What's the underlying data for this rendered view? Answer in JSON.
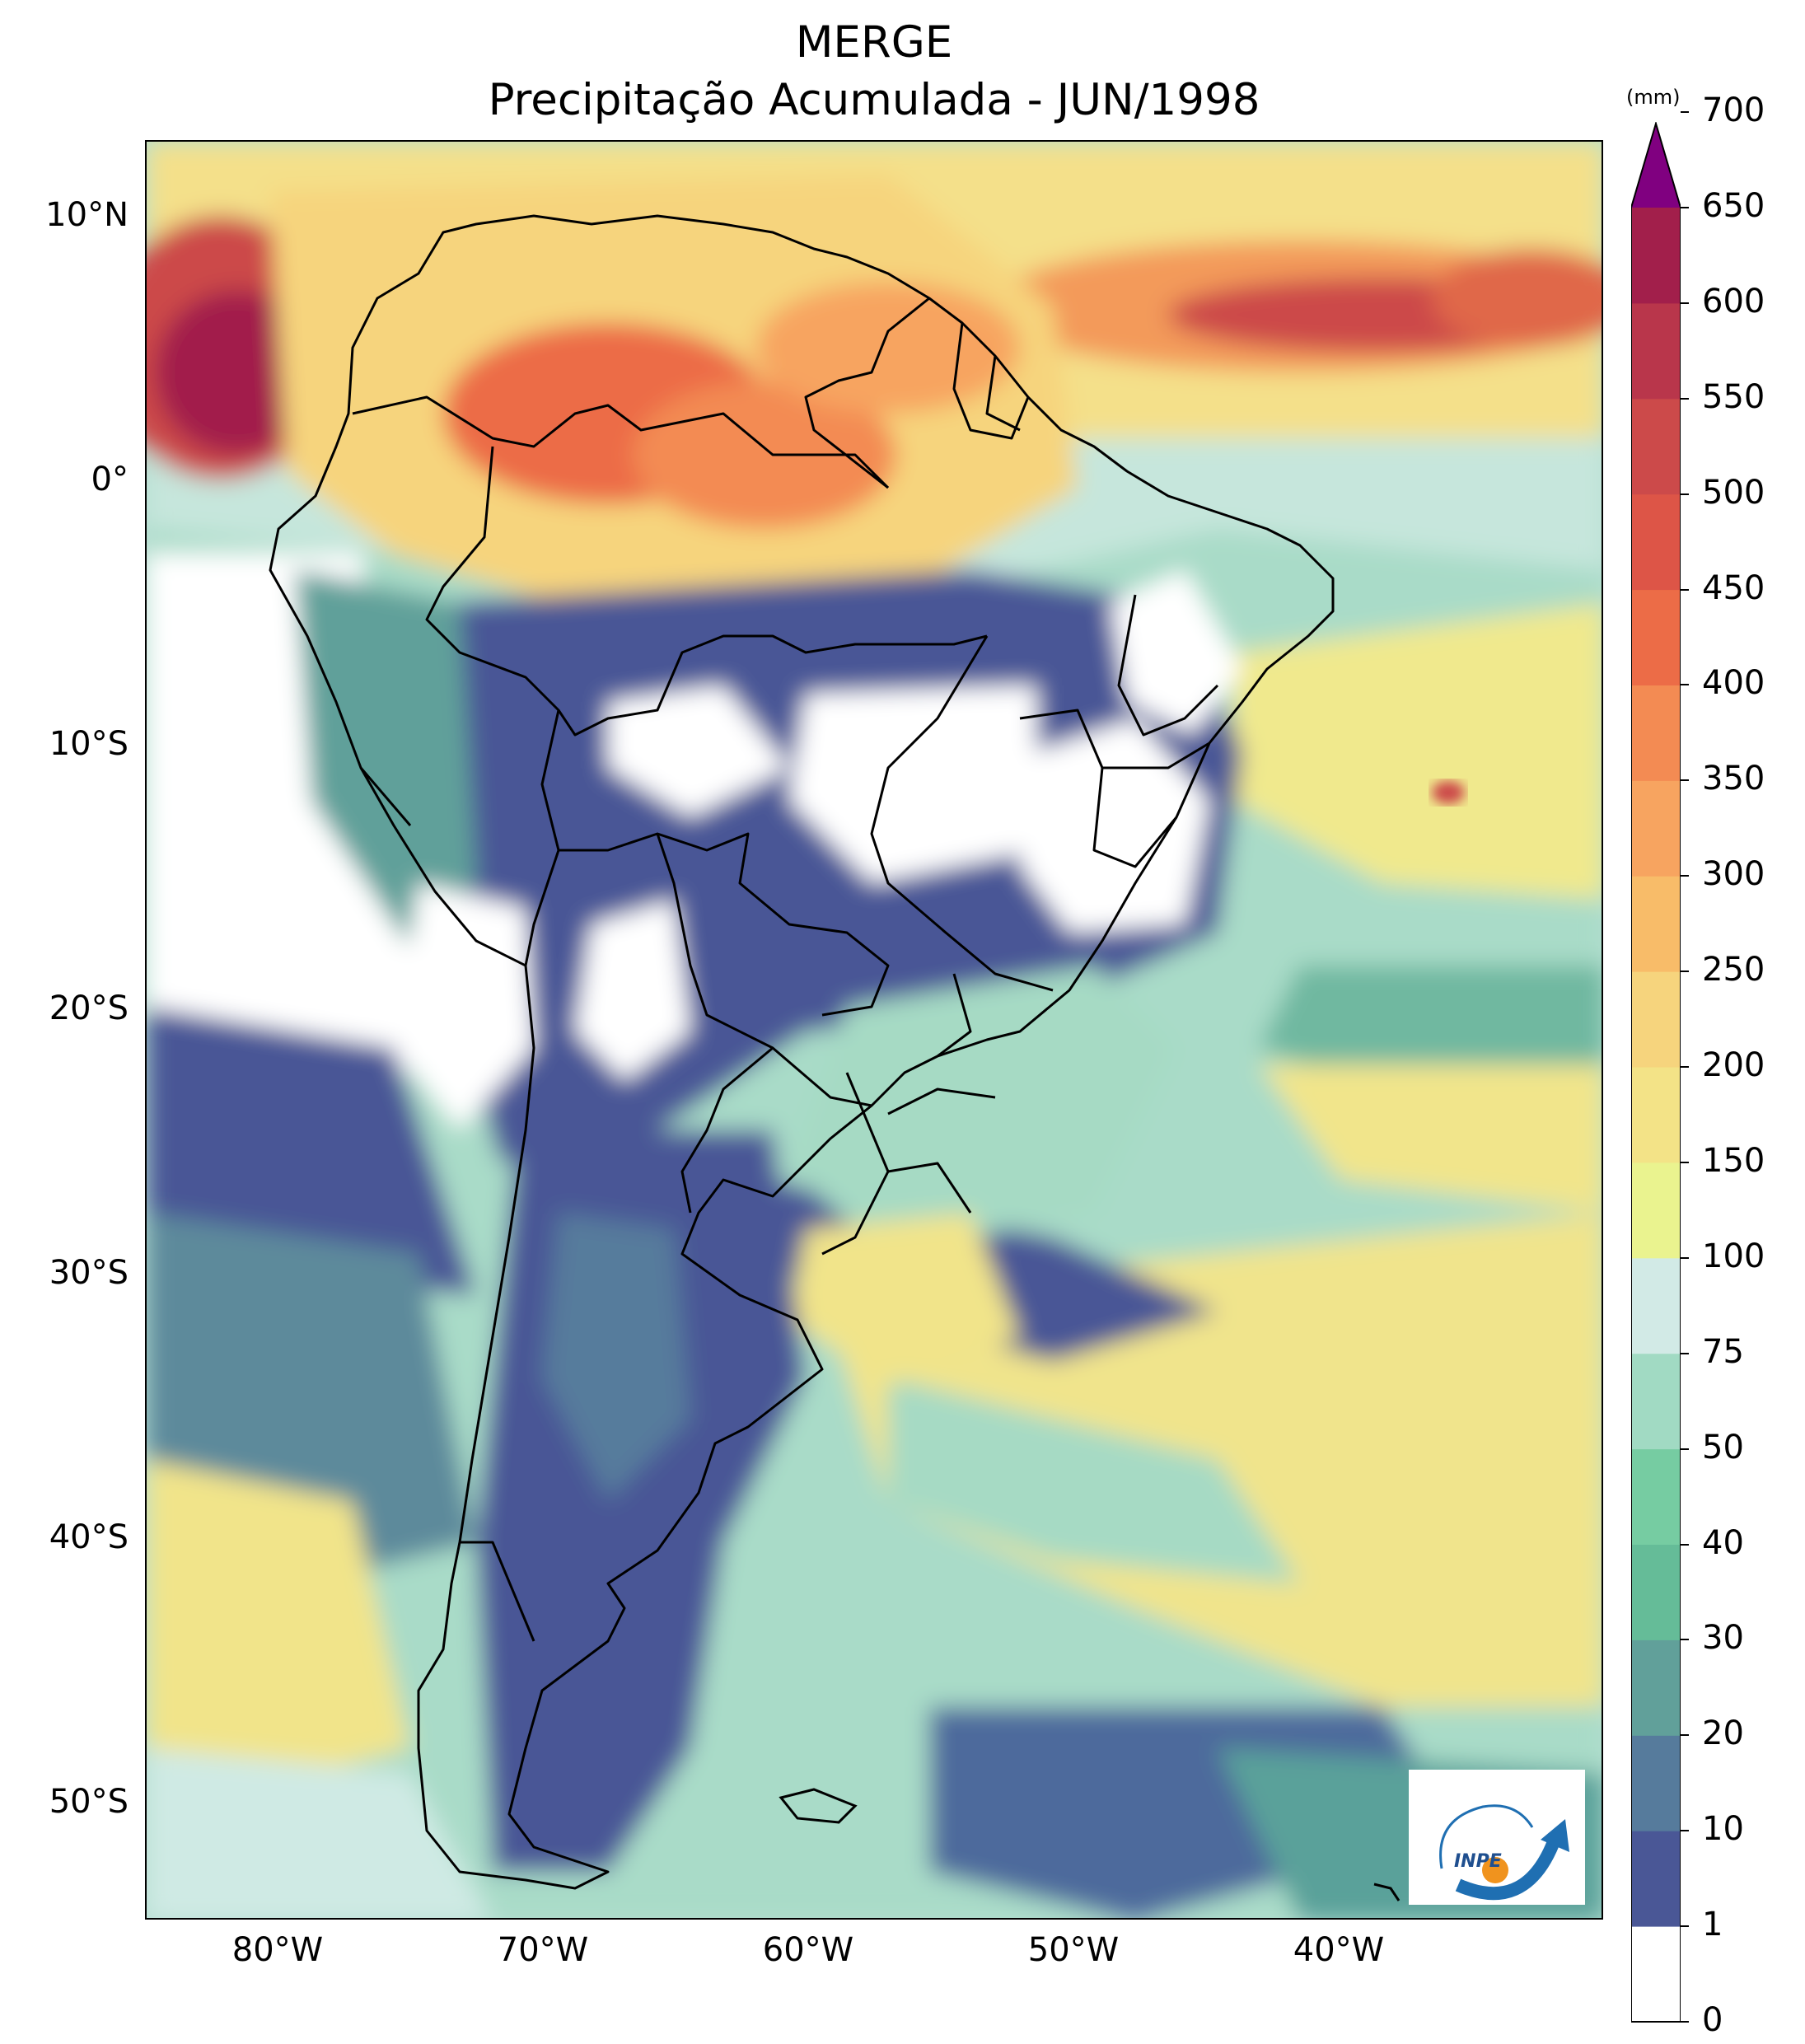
{
  "title": {
    "line1": "MERGE",
    "line2": "Precipitação Acumulada - JUN/1998"
  },
  "map": {
    "lon_range": [
      -85,
      -30
    ],
    "lat_range": [
      -56,
      13
    ],
    "latitude_labels": [
      "10°N",
      "0°",
      "10°S",
      "20°S",
      "30°S",
      "40°S",
      "50°S"
    ],
    "latitude_values": [
      10,
      0,
      -10,
      -20,
      -30,
      -40,
      -50
    ],
    "longitude_labels": [
      "80°W",
      "70°W",
      "60°W",
      "50°W",
      "40°W"
    ],
    "longitude_values": [
      -80,
      -70,
      -60,
      -50,
      -40
    ]
  },
  "colorbar": {
    "unit": "(mm)",
    "extend": "max",
    "tick_labels": [
      "0",
      "1",
      "10",
      "20",
      "30",
      "40",
      "50",
      "75",
      "100",
      "150",
      "200",
      "250",
      "300",
      "350",
      "400",
      "450",
      "500",
      "550",
      "600",
      "650",
      "700"
    ],
    "colors": [
      "#ffffff",
      "#4a5796",
      "#567b9c",
      "#61a09a",
      "#65bc98",
      "#76cca2",
      "#a1dac3",
      "#d2eae6",
      "#eaf38f",
      "#f3e387",
      "#f6d47d",
      "#f8bc69",
      "#f7a460",
      "#f38b53",
      "#ec6c47",
      "#dd5547",
      "#cc4a4a",
      "#b9364b",
      "#a21f4b",
      "#800080"
    ]
  },
  "logo": {
    "text": "INPE"
  }
}
